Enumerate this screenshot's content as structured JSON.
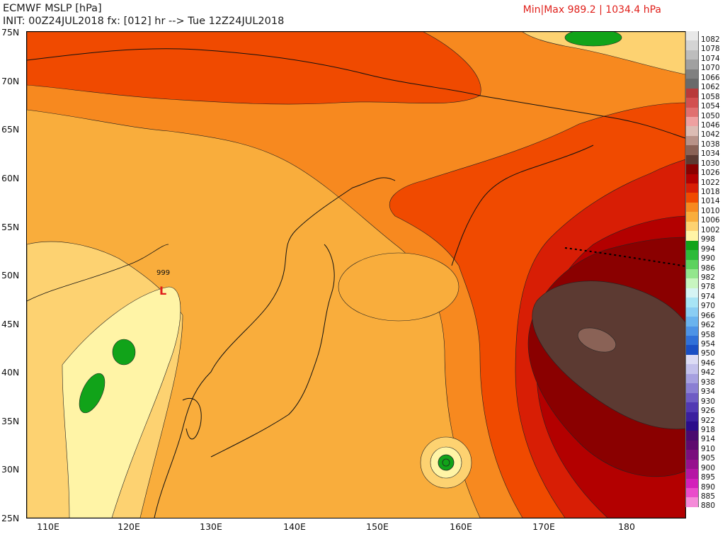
{
  "header": {
    "title": "ECMWF MSLP [hPa]",
    "init_line": "INIT: 00Z24JUL2018 fx: [012] hr --> Tue 12Z24JUL2018",
    "minmax": "Min|Max 989.2 | 1034.4 hPa"
  },
  "map": {
    "lat_labels": [
      "75N",
      "70N",
      "65N",
      "60N",
      "55N",
      "50N",
      "45N",
      "40N",
      "35N",
      "30N",
      "25N"
    ],
    "lon_labels": [
      "110E",
      "120E",
      "130E",
      "140E",
      "150E",
      "160E",
      "170E",
      "180"
    ],
    "low_marker": "L",
    "low_value": "999"
  },
  "colorbar": {
    "levels": [
      {
        "label": "1082",
        "color": "#e8e8e8"
      },
      {
        "label": "1078",
        "color": "#d4d4d4"
      },
      {
        "label": "1074",
        "color": "#bdbdbd"
      },
      {
        "label": "1070",
        "color": "#a0a0a0"
      },
      {
        "label": "1066",
        "color": "#808080"
      },
      {
        "label": "1062",
        "color": "#6a6a6a"
      },
      {
        "label": "1058",
        "color": "#b83a3a"
      },
      {
        "label": "1054",
        "color": "#d25050"
      },
      {
        "label": "1050",
        "color": "#e07070"
      },
      {
        "label": "1046",
        "color": "#eea0a0"
      },
      {
        "label": "1042",
        "color": "#dcbcb4"
      },
      {
        "label": "1038",
        "color": "#b89288"
      },
      {
        "label": "1034",
        "color": "#8a6256"
      },
      {
        "label": "1030",
        "color": "#5c3a32"
      },
      {
        "label": "1026",
        "color": "#8a0000"
      },
      {
        "label": "1022",
        "color": "#b30000"
      },
      {
        "label": "1018",
        "color": "#d81e05"
      },
      {
        "label": "1014",
        "color": "#f04a00"
      },
      {
        "label": "1010",
        "color": "#f7891f"
      },
      {
        "label": "1006",
        "color": "#f9ad3c"
      },
      {
        "label": "1002",
        "color": "#fdd271"
      },
      {
        "label": "998",
        "color": "#fff4a6"
      },
      {
        "label": "994",
        "color": "#11a319"
      },
      {
        "label": "990",
        "color": "#2dbb3a"
      },
      {
        "label": "986",
        "color": "#5cd25e"
      },
      {
        "label": "982",
        "color": "#93e68d"
      },
      {
        "label": "978",
        "color": "#c8f5c0"
      },
      {
        "label": "974",
        "color": "#d6f4f4"
      },
      {
        "label": "970",
        "color": "#a8e4f5"
      },
      {
        "label": "966",
        "color": "#8acdf3"
      },
      {
        "label": "962",
        "color": "#6ab3ee"
      },
      {
        "label": "958",
        "color": "#4d93e6"
      },
      {
        "label": "954",
        "color": "#3070d8"
      },
      {
        "label": "950",
        "color": "#1a4fc4"
      },
      {
        "label": "946",
        "color": "#dcdcf5"
      },
      {
        "label": "942",
        "color": "#c3c1ec"
      },
      {
        "label": "938",
        "color": "#a6a0e0"
      },
      {
        "label": "934",
        "color": "#8a7fd3"
      },
      {
        "label": "930",
        "color": "#6e5cc4"
      },
      {
        "label": "926",
        "color": "#5139b3"
      },
      {
        "label": "922",
        "color": "#3a1f9e"
      },
      {
        "label": "918",
        "color": "#2a0c8a"
      },
      {
        "label": "914",
        "color": "#4a0a6e"
      },
      {
        "label": "910",
        "color": "#5e0a6e"
      },
      {
        "label": "905",
        "color": "#7a0f7d"
      },
      {
        "label": "900",
        "color": "#96108e"
      },
      {
        "label": "895",
        "color": "#b516a4"
      },
      {
        "label": "890",
        "color": "#d320ba"
      },
      {
        "label": "885",
        "color": "#ea4ccb"
      },
      {
        "label": "880",
        "color": "#f58bd9"
      }
    ]
  }
}
